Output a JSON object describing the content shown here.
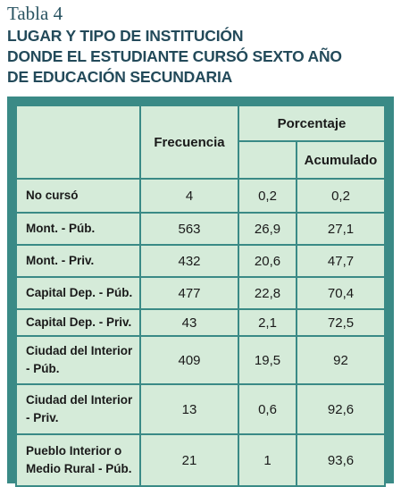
{
  "caption": "Tabla 4",
  "heading": [
    "LUGAR Y TIPO DE INSTITUCIÓN",
    "DONDE EL ESTUDIANTE CURSÓ SEXTO AÑO",
    "DE EDUCACIÓN SECUNDARIA"
  ],
  "table": {
    "header": {
      "frequency": "Frecuencia",
      "percent": "Porcentaje",
      "cumulative": "Acumulado"
    },
    "rows": [
      [
        "No cursó",
        "4",
        "0,2",
        "0,2"
      ],
      [
        "Mont. - Púb.",
        "563",
        "26,9",
        "27,1"
      ],
      [
        "Mont. - Priv.",
        "432",
        "20,6",
        "47,7"
      ],
      [
        "Capital Dep. - Púb.",
        "477",
        "22,8",
        "70,4"
      ],
      [
        "Capital Dep. - Priv.",
        "43",
        "2,1",
        "72,5"
      ],
      [
        "Ciudad del Interior - Púb.",
        "409",
        "19,5",
        "92"
      ],
      [
        "Ciudad del Interior - Priv.",
        "13",
        "0,6",
        "92,6"
      ],
      [
        "Pueblo Interior o Medio Rural - Púb.",
        "21",
        "1",
        "93,6"
      ]
    ]
  }
}
